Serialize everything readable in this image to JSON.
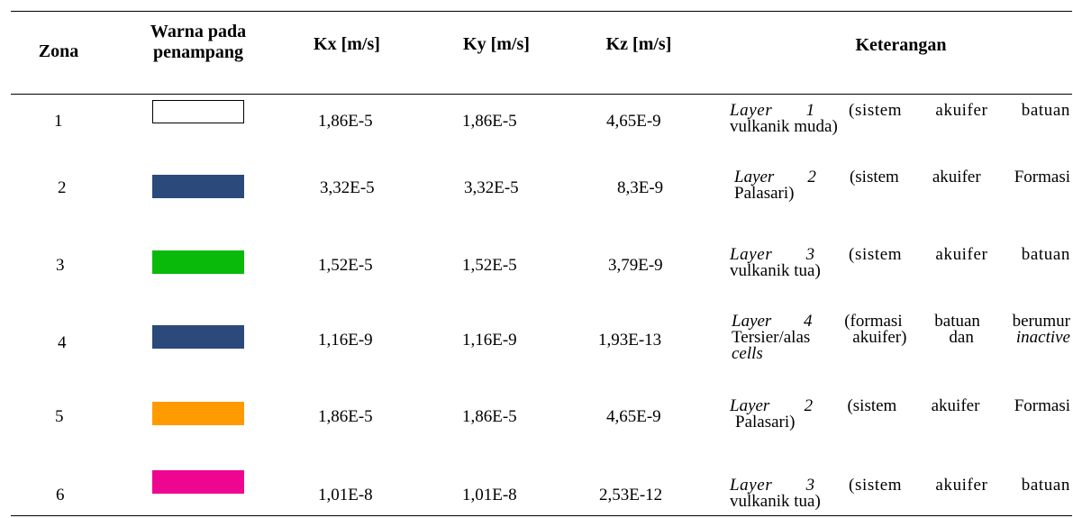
{
  "table": {
    "headers": {
      "zona": "Zona",
      "warna_line1": "Warna pada",
      "warna_line2": "penampang",
      "kx": "Kx [m/s]",
      "ky": "Ky [m/s]",
      "kz": "Kz [m/s]",
      "keterangan": "Keterangan"
    },
    "rows": [
      {
        "zona": "1",
        "swatch_color": "#ffffff",
        "kx": "1,86E-5",
        "ky": "1,86E-5",
        "kz": "4,65E-9",
        "ket_italic": "Layer 1",
        "ket_rest1": " (sistem akuifer batuan",
        "ket_line2": "vulkanik muda)"
      },
      {
        "zona": "2",
        "swatch_color": "#2b4a7b",
        "kx": "3,32E-5",
        "ky": "3,32E-5",
        "kz": "8,3E-9",
        "ket_italic": "Layer 2",
        "ket_rest1": " (sistem akuifer Formasi",
        "ket_line2": "Palasari)"
      },
      {
        "zona": "3",
        "swatch_color": "#0aba0a",
        "kx": "1,52E-5",
        "ky": "1,52E-5",
        "kz": "3,79E-9",
        "ket_italic": "Layer 3",
        "ket_rest1": " (sistem akuifer batuan",
        "ket_line2": "vulkanik tua)"
      },
      {
        "zona": "4",
        "swatch_color": "#2b4a7b",
        "kx": "1,16E-9",
        "ky": "1,16E-9",
        "kz": "1,93E-13",
        "ket_italic": "Layer 4",
        "ket_rest1": " (formasi batuan berumur",
        "ket_line2": "Tersier/alas akuifer) dan ",
        "ket_line2_italic": "inactive",
        "ket_line3_italic": "cells"
      },
      {
        "zona": "5",
        "swatch_color": "#ff9a00",
        "kx": "1,86E-5",
        "ky": "1,86E-5",
        "kz": "4,65E-9",
        "ket_italic": "Layer 2",
        "ket_rest1": " (sistem akuifer Formasi",
        "ket_line2": "Palasari)"
      },
      {
        "zona": "6",
        "swatch_color": "#ee0590",
        "kx": "1,01E-8",
        "ky": "1,01E-8",
        "kz": "2,53E-12",
        "ket_italic": "Layer 3",
        "ket_rest1": " (sistem akuifer batuan",
        "ket_line2": "vulkanik tua)"
      }
    ]
  }
}
